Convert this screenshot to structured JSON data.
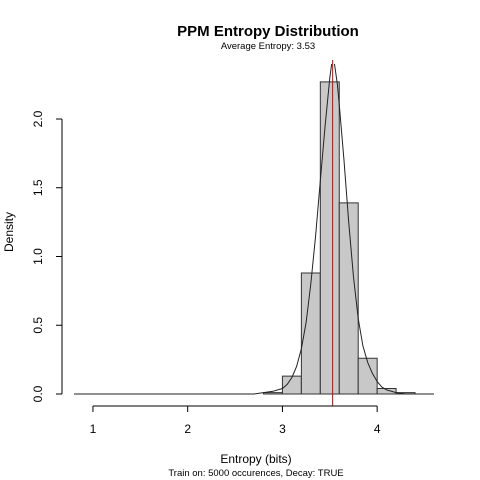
{
  "chart_data": {
    "type": "bar",
    "title": "PPM Entropy Distribution",
    "subtitle": "Average Entropy: 3.53",
    "xlabel": "Entropy (bits)",
    "ylabel": "Density",
    "caption": "Train on: 5000 occurences, Decay: TRUE",
    "x_ticks": [
      "1",
      "2",
      "3",
      "4"
    ],
    "y_ticks": [
      "0.0",
      "0.5",
      "1.0",
      "1.5",
      "2.0"
    ],
    "xlim": [
      0.8,
      4.6
    ],
    "ylim": [
      0,
      2.4
    ],
    "bin_edges": [
      0.8,
      1.0,
      1.2,
      1.4,
      1.6,
      1.8,
      2.0,
      2.2,
      2.4,
      2.6,
      2.8,
      3.0,
      3.2,
      3.4,
      3.6,
      3.8,
      4.0,
      4.2,
      4.4
    ],
    "densities": [
      0.0,
      0.0,
      0.0,
      0.0,
      0.0,
      0.0,
      0.0,
      0.0,
      0.0,
      0.0,
      0.01,
      0.13,
      0.88,
      2.27,
      1.39,
      0.26,
      0.04,
      0.01
    ],
    "density_curve": {
      "x": [
        0.8,
        1.0,
        1.5,
        2.0,
        2.5,
        2.7,
        2.8,
        2.9,
        3.0,
        3.05,
        3.1,
        3.15,
        3.2,
        3.25,
        3.3,
        3.35,
        3.4,
        3.45,
        3.5,
        3.53,
        3.55,
        3.58,
        3.6,
        3.65,
        3.7,
        3.75,
        3.8,
        3.85,
        3.9,
        3.95,
        4.0,
        4.05,
        4.1,
        4.2,
        4.3,
        4.4,
        4.5,
        4.6
      ],
      "y": [
        0.0,
        0.0,
        0.0,
        0.0,
        0.0,
        0.0,
        0.01,
        0.02,
        0.04,
        0.07,
        0.12,
        0.2,
        0.33,
        0.52,
        0.8,
        1.15,
        1.55,
        1.95,
        2.3,
        2.45,
        2.4,
        2.25,
        2.1,
        1.7,
        1.25,
        0.85,
        0.55,
        0.35,
        0.23,
        0.15,
        0.09,
        0.05,
        0.03,
        0.01,
        0.0,
        0.0,
        0.0,
        0.0
      ]
    },
    "mean_line": {
      "x": 3.53,
      "color": "#dd0000"
    },
    "bar_color": "#c8c8c8",
    "grid": false
  }
}
